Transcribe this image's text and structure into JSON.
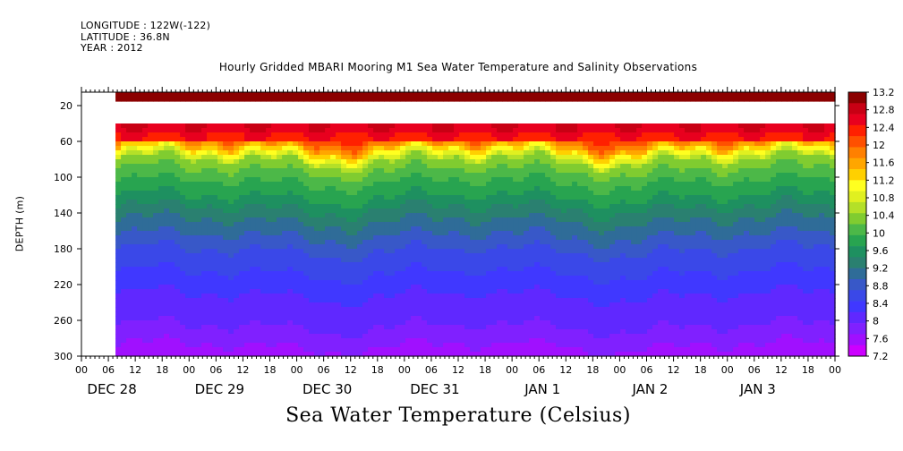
{
  "header": {
    "longitude": "LONGITUDE : 122W(-122)",
    "latitude": "LATITUDE : 36.8N",
    "year": "YEAR : 2012"
  },
  "chart_data": {
    "type": "heatmap",
    "title": "Hourly Gridded MBARI Mooring M1 Sea Water Temperature and Salinity Observations",
    "xlabel": "Sea Water Temperature (Celsius)",
    "ylabel": "DEPTH (m)",
    "ylim": [
      300,
      5
    ],
    "y_ticks": [
      20,
      60,
      100,
      140,
      180,
      220,
      260,
      300
    ],
    "x_hour_ticks": [
      "00",
      "06",
      "12",
      "18",
      "00",
      "06",
      "12",
      "18",
      "00",
      "06",
      "12",
      "18",
      "00",
      "06",
      "12",
      "18",
      "00",
      "06",
      "12",
      "18",
      "00",
      "06",
      "12",
      "18",
      "00",
      "06",
      "12",
      "18",
      "00"
    ],
    "x_day_labels": [
      "DEC 28",
      "DEC 29",
      "DEC 30",
      "DEC 31",
      "JAN  1",
      "JAN  2",
      "JAN  3"
    ],
    "data_start": "2012-12-28 06:00",
    "data_end": "2013-01-04 00:00",
    "colorbar_levels": [
      "13.2",
      "12.8",
      "12.4",
      "12",
      "11.6",
      "11.2",
      "10.8",
      "10.4",
      "10",
      "9.6",
      "9.2",
      "8.8",
      "8.4",
      "8",
      "7.6",
      "7.2"
    ],
    "colorbar_colors": [
      "#8b0000",
      "#c80014",
      "#e8001e",
      "#ff2000",
      "#ff5000",
      "#ff8000",
      "#ffa600",
      "#ffd000",
      "#ffff20",
      "#e0f020",
      "#b4e028",
      "#80cc30",
      "#4cb848",
      "#28a450",
      "#1e9060",
      "#2a8070",
      "#2f6c98",
      "#3858c8",
      "#3a48e8",
      "#4038ff",
      "#6028ff",
      "#8020ff",
      "#a010ff",
      "#cc00ff"
    ],
    "temperature_by_depth": [
      {
        "depth": 10,
        "temp": 13.0
      },
      {
        "depth": 40,
        "temp": 12.6
      },
      {
        "depth": 60,
        "temp": 11.8
      },
      {
        "depth": 80,
        "temp": 10.4
      },
      {
        "depth": 100,
        "temp": 10.0
      },
      {
        "depth": 120,
        "temp": 9.7
      },
      {
        "depth": 140,
        "temp": 9.3
      },
      {
        "depth": 160,
        "temp": 9.0
      },
      {
        "depth": 180,
        "temp": 8.7
      },
      {
        "depth": 200,
        "temp": 8.5
      },
      {
        "depth": 220,
        "temp": 8.3
      },
      {
        "depth": 240,
        "temp": 8.1
      },
      {
        "depth": 260,
        "temp": 8.0
      },
      {
        "depth": 280,
        "temp": 7.8
      },
      {
        "depth": 300,
        "temp": 7.5
      }
    ],
    "missing_depth_range": [
      15,
      40
    ]
  }
}
